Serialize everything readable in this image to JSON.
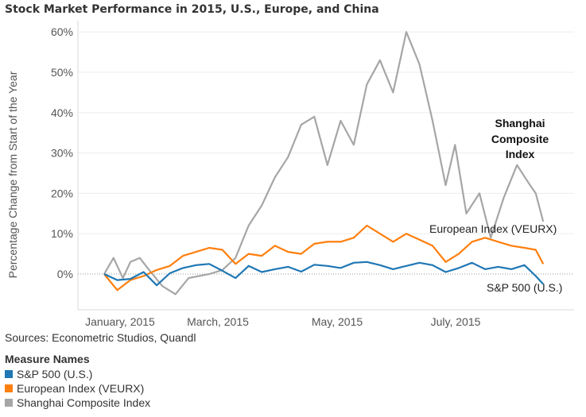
{
  "title": "Stock Market Performance in 2015, U.S., Europe, and China",
  "source": "Sources: Econometric Studios, Quandl",
  "legend": {
    "title": "Measure Names",
    "items": [
      {
        "label": "S&P 500 (U.S.)",
        "color": "#1f77b4"
      },
      {
        "label": "European Index (VEURX)",
        "color": "#ff7f0e"
      },
      {
        "label": "Shanghai Composite Index",
        "color": "#a6a6a6"
      }
    ]
  },
  "chart_data": {
    "type": "line",
    "ylabel": "Percentage Change from Start of the Year",
    "xlabel": "",
    "x_ticks": [
      "January, 2015",
      "March, 2015",
      "May, 2015",
      "July, 2015"
    ],
    "y_ticks": [
      "0%",
      "10%",
      "20%",
      "30%",
      "40%",
      "50%",
      "60%"
    ],
    "ylim": [
      -8,
      62
    ],
    "grid": "horizontal",
    "annotations": [
      {
        "text": "Shanghai Composite Index",
        "lines": [
          "Shanghai",
          "Composite",
          "Index"
        ],
        "series": "Shanghai Composite Index",
        "bold": true
      },
      {
        "text": "European Index (VEURX)",
        "series": "European Index (VEURX)",
        "bold": false
      },
      {
        "text": "S&P 500 (U.S.)",
        "series": "S&P 500 (U.S.)",
        "bold": false
      }
    ],
    "series": [
      {
        "name": "S&P 500 (U.S.)",
        "color": "#1f77b4",
        "x": [
          "2015-01-02",
          "2015-01-09",
          "2015-01-16",
          "2015-01-23",
          "2015-01-30",
          "2015-02-06",
          "2015-02-13",
          "2015-02-20",
          "2015-02-27",
          "2015-03-06",
          "2015-03-13",
          "2015-03-20",
          "2015-03-27",
          "2015-04-03",
          "2015-04-10",
          "2015-04-17",
          "2015-04-24",
          "2015-05-01",
          "2015-05-08",
          "2015-05-15",
          "2015-05-22",
          "2015-05-29",
          "2015-06-05",
          "2015-06-12",
          "2015-06-19",
          "2015-06-26",
          "2015-07-03",
          "2015-07-10",
          "2015-07-17",
          "2015-07-24",
          "2015-07-31",
          "2015-08-07",
          "2015-08-14",
          "2015-08-20",
          "2015-08-24"
        ],
        "values": [
          0,
          -1.5,
          -1.2,
          0.5,
          -2.8,
          0.2,
          1.5,
          2.2,
          2.5,
          0.8,
          -1,
          2,
          0.5,
          1.2,
          1.8,
          0.6,
          2.3,
          2,
          1.5,
          2.8,
          3,
          2.2,
          1.2,
          2,
          2.8,
          2.2,
          0.5,
          1.5,
          2.8,
          1.2,
          1.8,
          1.2,
          2.2,
          -0.5,
          -2.5
        ]
      },
      {
        "name": "European Index (VEURX)",
        "color": "#ff7f0e",
        "x": [
          "2015-01-02",
          "2015-01-09",
          "2015-01-16",
          "2015-01-23",
          "2015-01-30",
          "2015-02-06",
          "2015-02-13",
          "2015-02-20",
          "2015-02-27",
          "2015-03-06",
          "2015-03-13",
          "2015-03-20",
          "2015-03-27",
          "2015-04-03",
          "2015-04-10",
          "2015-04-17",
          "2015-04-24",
          "2015-05-01",
          "2015-05-08",
          "2015-05-15",
          "2015-05-22",
          "2015-05-29",
          "2015-06-05",
          "2015-06-12",
          "2015-06-19",
          "2015-06-26",
          "2015-07-03",
          "2015-07-10",
          "2015-07-17",
          "2015-07-24",
          "2015-07-31",
          "2015-08-07",
          "2015-08-14",
          "2015-08-20",
          "2015-08-24"
        ],
        "values": [
          0,
          -4,
          -1.5,
          -0.5,
          1,
          2,
          4.5,
          5.5,
          6.5,
          6,
          2.5,
          5,
          4.5,
          7,
          5.5,
          5,
          7.5,
          8,
          8,
          9,
          12,
          10,
          8,
          10,
          8.5,
          7,
          3,
          5,
          8,
          9,
          8,
          7,
          6.5,
          6,
          2.5
        ]
      },
      {
        "name": "Shanghai Composite Index",
        "color": "#a6a6a6",
        "x": [
          "2015-01-02",
          "2015-01-07",
          "2015-01-12",
          "2015-01-16",
          "2015-01-21",
          "2015-01-26",
          "2015-02-02",
          "2015-02-09",
          "2015-02-16",
          "2015-02-27",
          "2015-03-06",
          "2015-03-13",
          "2015-03-20",
          "2015-03-27",
          "2015-04-03",
          "2015-04-10",
          "2015-04-17",
          "2015-04-24",
          "2015-05-01",
          "2015-05-08",
          "2015-05-15",
          "2015-05-22",
          "2015-05-29",
          "2015-06-05",
          "2015-06-12",
          "2015-06-19",
          "2015-06-26",
          "2015-07-03",
          "2015-07-08",
          "2015-07-14",
          "2015-07-21",
          "2015-07-27",
          "2015-08-03",
          "2015-08-10",
          "2015-08-17",
          "2015-08-20",
          "2015-08-24"
        ],
        "values": [
          0,
          4,
          -1,
          3,
          4,
          1,
          -3,
          -5,
          -1,
          0,
          1,
          4,
          12,
          17,
          24,
          29,
          37,
          39,
          27,
          38,
          32,
          47,
          53,
          45,
          60,
          52,
          38,
          22,
          32,
          15,
          20,
          9,
          19,
          27,
          22,
          20,
          13
        ]
      }
    ]
  }
}
